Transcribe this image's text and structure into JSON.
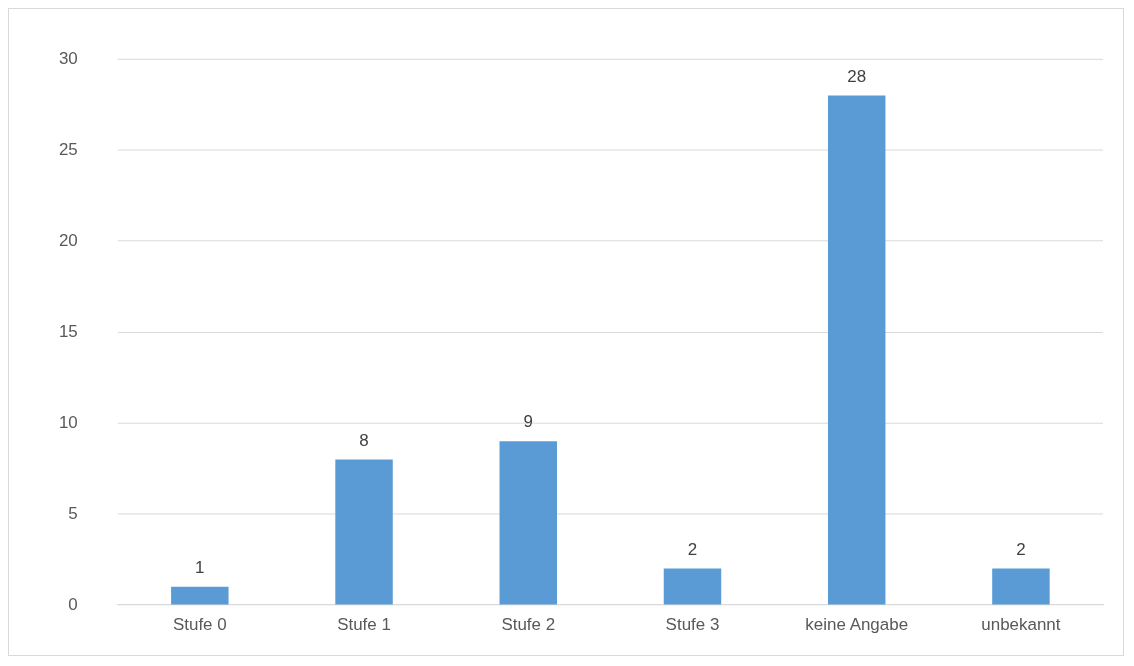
{
  "chart_data": {
    "type": "bar",
    "categories": [
      "Stufe 0",
      "Stufe 1",
      "Stufe 2",
      "Stufe 3",
      "keine Angabe",
      "unbekannt"
    ],
    "values": [
      1,
      8,
      9,
      2,
      28,
      2
    ],
    "color": "#5b9bd5",
    "ylim": [
      0,
      30
    ],
    "yticks": [
      0,
      5,
      10,
      15,
      20,
      25,
      30
    ],
    "grid": "y",
    "data_labels": true,
    "legend": false
  }
}
